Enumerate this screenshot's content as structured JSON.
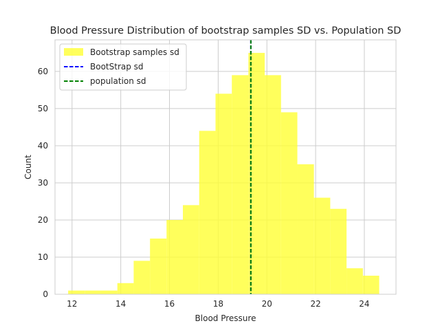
{
  "chart_data": {
    "type": "bar",
    "title": "Blood Pressure Distribution of bootstrap samples SD vs. Population SD",
    "xlabel": "Blood Pressure",
    "ylabel": "Count",
    "xlim": [
      11.3,
      25.3
    ],
    "ylim": [
      0,
      68.5
    ],
    "x_ticks": [
      12,
      14,
      16,
      18,
      20,
      22,
      24
    ],
    "y_ticks": [
      0,
      10,
      20,
      30,
      40,
      50,
      60
    ],
    "grid": true,
    "legend_placement": "top-left",
    "series": [
      {
        "name": "Bootstrap samples sd",
        "kind": "histogram",
        "color": "#ffff33",
        "bin_edges": [
          11.84,
          12.52,
          13.19,
          13.86,
          14.53,
          15.2,
          15.88,
          16.55,
          17.22,
          17.89,
          18.56,
          19.24,
          19.91,
          20.58,
          21.25,
          21.93,
          22.6,
          23.27,
          23.94,
          24.61
        ],
        "counts": [
          1,
          1,
          1,
          3,
          9,
          15,
          20,
          24,
          44,
          54,
          59,
          65,
          59,
          49,
          35,
          26,
          23,
          7,
          5
        ]
      },
      {
        "name": "BootStrap sd",
        "kind": "vline",
        "color": "#0000ff",
        "x": 19.34
      },
      {
        "name": "population sd",
        "kind": "vline",
        "color": "#008000",
        "x": 19.34
      }
    ]
  }
}
